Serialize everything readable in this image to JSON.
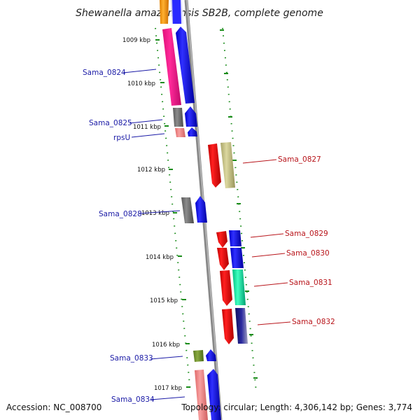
{
  "title": "Shewanella amazonensis SB2B, complete genome",
  "ticks": [
    "1009 kbp",
    "1010 kbp",
    "1011 kbp",
    "1012 kbp",
    "1013 kbp",
    "1014 kbp",
    "1015 kbp",
    "1016 kbp",
    "1017 kbp"
  ],
  "gene_labels": {
    "sama_0824": "Sama_0824",
    "sama_0825": "Sama_0825",
    "rpsu": "rpsU",
    "sama_0827": "Sama_0827",
    "sama_0828": "Sama_0828",
    "sama_0829": "Sama_0829",
    "sama_0830": "Sama_0830",
    "sama_0831": "Sama_0831",
    "sama_0832": "Sama_0832",
    "sama_0833": "Sama_0833",
    "sama_0834": "Sama_0834"
  },
  "footer": {
    "accession": "Accession: NC_008700",
    "stats": "Topology: circular; Length: 4,306,142 bp; Genes: 3,774"
  },
  "colors": {
    "blue": "#0000ff",
    "red": "#ff0000",
    "magenta": "#ff1493",
    "gray": "#7a7a7a",
    "salmon": "#f08080",
    "khaki": "#c8c48a",
    "teal": "#00e6a0",
    "navy": "#1a1a90",
    "olive": "#7a9a30",
    "orange": "#ff9900",
    "tick_green": "#1a8c1a",
    "backbone": "#8a8a8a"
  }
}
